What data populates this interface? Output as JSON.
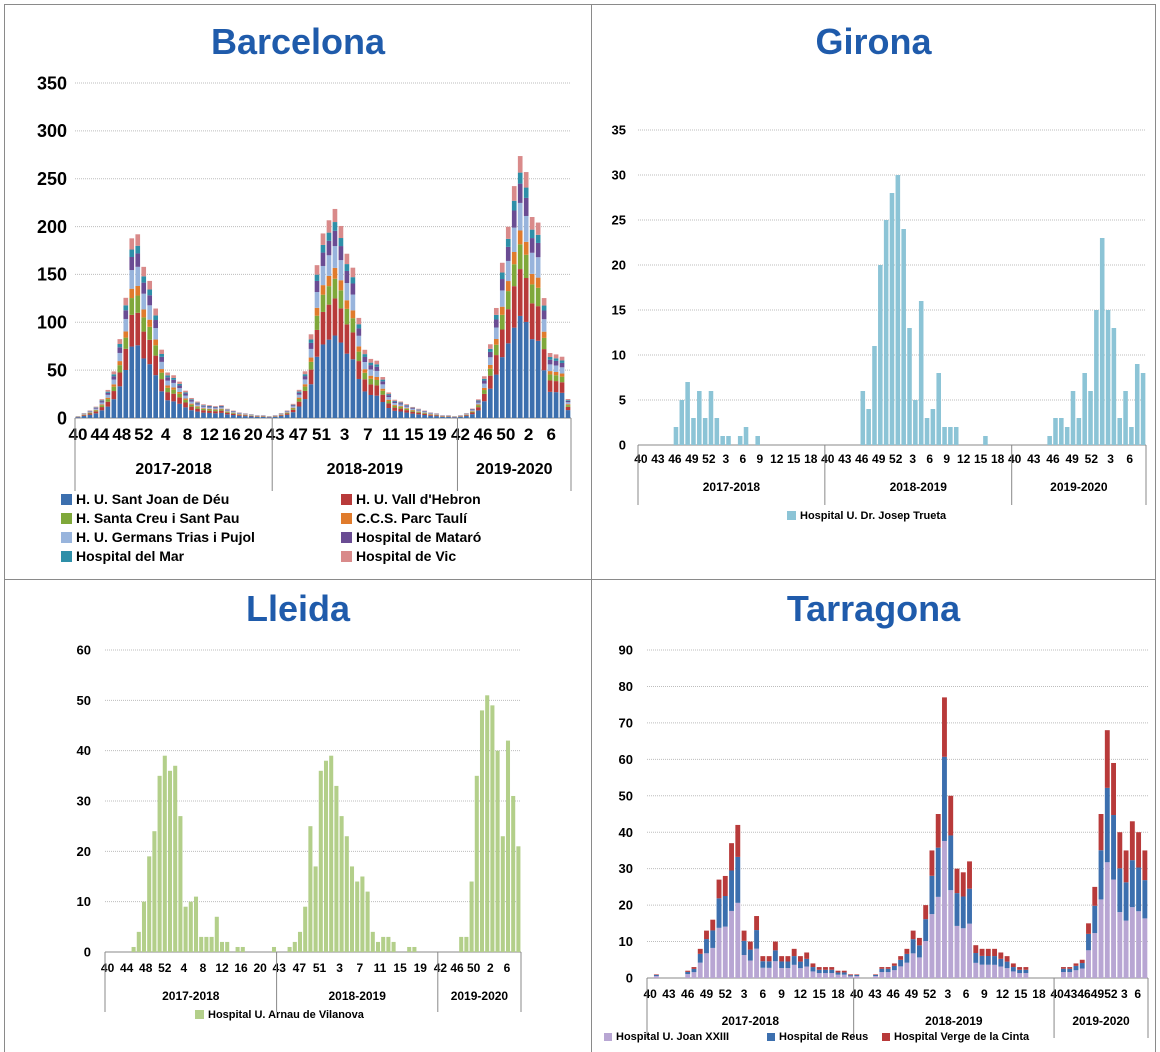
{
  "chart_data": [
    {
      "type": "bar",
      "stacked": true,
      "title": "Barcelona",
      "ylim": [
        0,
        350
      ],
      "yticks": [
        0,
        50,
        100,
        150,
        200,
        250,
        300,
        350
      ],
      "grid": true,
      "legend_position": "bottom",
      "seasons": [
        {
          "label": "2017-2018",
          "ticks": [
            "40",
            "44",
            "48",
            "52",
            "4",
            "8",
            "12",
            "16",
            "20"
          ]
        },
        {
          "label": "2018-2019",
          "ticks": [
            "43",
            "47",
            "51",
            "3",
            "7",
            "11",
            "15",
            "19"
          ]
        },
        {
          "label": "2019-2020",
          "ticks": [
            "42",
            "46",
            "50",
            "2",
            "6"
          ]
        }
      ],
      "series": [
        {
          "name": "H. U. Sant Joan de Déu",
          "color": "#3c6fae"
        },
        {
          "name": "H. U. Vall d'Hebron",
          "color": "#b83a3a"
        },
        {
          "name": "H. Santa Creu i Sant Pau",
          "color": "#7fa83a"
        },
        {
          "name": "C.C.S. Parc Taulí",
          "color": "#e07b2c"
        },
        {
          "name": "H. U. Germans Trias i Pujol",
          "color": "#98b4dc"
        },
        {
          "name": "Hospital de Mataró",
          "color": "#6a4c93"
        },
        {
          "name": "Hospital del Mar",
          "color": "#2e8fa8"
        },
        {
          "name": "Hospital de Vic",
          "color": "#d98a8a"
        }
      ],
      "season_totals": [
        [
          2,
          5,
          8,
          12,
          20,
          30,
          50,
          85,
          130,
          195,
          200,
          165,
          150,
          120,
          75,
          50,
          47,
          40,
          30,
          22,
          18,
          15,
          14,
          13,
          14,
          10,
          8,
          6,
          5,
          4,
          3,
          3,
          2
        ],
        [
          3,
          5,
          8,
          15,
          30,
          50,
          90,
          165,
          200,
          215,
          228,
          210,
          180,
          165,
          110,
          75,
          65,
          63,
          45,
          28,
          20,
          18,
          15,
          12,
          10,
          8,
          6,
          5,
          3,
          3,
          2
        ],
        [
          3,
          5,
          10,
          20,
          45,
          80,
          120,
          170,
          210,
          255,
          288,
          270,
          220,
          213,
          130,
          70,
          68,
          65,
          20
        ]
      ]
    },
    {
      "type": "bar",
      "title": "Girona",
      "ylim": [
        0,
        35
      ],
      "yticks": [
        0,
        5,
        10,
        15,
        20,
        25,
        30,
        35
      ],
      "grid": true,
      "legend_position": "bottom",
      "seasons": [
        {
          "label": "2017-2018",
          "ticks": [
            "40",
            "43",
            "46",
            "49",
            "52",
            "3",
            "6",
            "9",
            "12",
            "15",
            "18"
          ]
        },
        {
          "label": "2018-2019",
          "ticks": [
            "40",
            "43",
            "46",
            "49",
            "52",
            "3",
            "6",
            "9",
            "12",
            "15",
            "18"
          ]
        },
        {
          "label": "2019-2020",
          "ticks": [
            "40",
            "43",
            "46",
            "49",
            "52",
            "3",
            "6"
          ]
        }
      ],
      "series": [
        {
          "name": "Hospital U. Dr. Josep Trueta",
          "color": "#8cc4d6"
        }
      ],
      "season_values": [
        [
          0,
          0,
          0,
          0,
          0,
          0,
          2,
          5,
          7,
          3,
          6,
          3,
          6,
          3,
          1,
          1,
          0,
          1,
          2,
          0,
          1,
          0,
          0,
          0,
          0,
          0,
          0,
          0,
          0,
          0,
          0,
          0
        ],
        [
          0,
          0,
          0,
          0,
          0,
          0,
          6,
          4,
          11,
          20,
          25,
          28,
          30,
          24,
          13,
          5,
          16,
          3,
          4,
          8,
          2,
          2,
          2,
          0,
          0,
          0,
          0,
          1,
          0,
          0,
          0,
          0
        ],
        [
          0,
          0,
          0,
          0,
          0,
          0,
          1,
          3,
          3,
          2,
          6,
          3,
          8,
          6,
          15,
          23,
          15,
          13,
          3,
          6,
          2,
          9,
          8
        ]
      ]
    },
    {
      "type": "bar",
      "title": "Lleida",
      "ylim": [
        0,
        60
      ],
      "yticks": [
        0,
        10,
        20,
        30,
        40,
        50,
        60
      ],
      "grid": true,
      "legend_position": "bottom",
      "seasons": [
        {
          "label": "2017-2018",
          "ticks": [
            "40",
            "44",
            "48",
            "52",
            "4",
            "8",
            "12",
            "16",
            "20"
          ]
        },
        {
          "label": "2018-2019",
          "ticks": [
            "43",
            "47",
            "51",
            "3",
            "7",
            "11",
            "15",
            "19"
          ]
        },
        {
          "label": "2019-2020",
          "ticks": [
            "42",
            "46",
            "50",
            "2",
            "6"
          ]
        }
      ],
      "series": [
        {
          "name": "Hospital U. Arnau de Vilanova",
          "color": "#b3cf8a"
        }
      ],
      "season_values": [
        [
          0,
          0,
          0,
          0,
          0,
          1,
          4,
          10,
          19,
          24,
          35,
          39,
          36,
          37,
          27,
          9,
          10,
          11,
          3,
          3,
          3,
          7,
          2,
          2,
          0,
          1,
          1,
          0,
          0,
          0,
          0,
          0,
          1
        ],
        [
          0,
          0,
          1,
          2,
          4,
          9,
          25,
          17,
          36,
          38,
          39,
          33,
          27,
          23,
          17,
          14,
          15,
          12,
          4,
          2,
          3,
          3,
          2,
          0,
          0,
          1,
          1,
          0,
          0,
          0,
          0
        ],
        [
          0,
          0,
          0,
          0,
          3,
          3,
          14,
          35,
          48,
          51,
          49,
          40,
          23,
          42,
          31,
          21
        ]
      ]
    },
    {
      "type": "bar",
      "stacked": true,
      "title": "Tarragona",
      "ylim": [
        0,
        90
      ],
      "yticks": [
        0,
        10,
        20,
        30,
        40,
        50,
        60,
        70,
        80,
        90
      ],
      "grid": true,
      "legend_position": "bottom",
      "seasons": [
        {
          "label": "2017-2018",
          "ticks": [
            "40",
            "43",
            "46",
            "49",
            "52",
            "3",
            "6",
            "9",
            "12",
            "15",
            "18"
          ]
        },
        {
          "label": "2018-2019",
          "ticks": [
            "40",
            "43",
            "46",
            "49",
            "52",
            "3",
            "6",
            "9",
            "12",
            "15",
            "18"
          ]
        },
        {
          "label": "2019-2020",
          "ticks": [
            "40",
            "43",
            "46",
            "49",
            "52",
            "3",
            "6"
          ]
        }
      ],
      "series": [
        {
          "name": "Hospital U. Joan XXIII",
          "color": "#b8a6d3"
        },
        {
          "name": "Hospital de Reus",
          "color": "#3c6fae"
        },
        {
          "name": "Hospital Verge de la Cinta",
          "color": "#b83a3a"
        }
      ],
      "season_totals": [
        [
          0,
          1,
          0,
          0,
          0,
          0,
          2,
          3,
          8,
          13,
          16,
          27,
          28,
          37,
          42,
          13,
          10,
          17,
          6,
          6,
          10,
          6,
          6,
          8,
          6,
          7,
          4,
          3,
          3,
          3,
          2,
          2,
          1
        ],
        [
          1,
          0,
          0,
          1,
          3,
          3,
          4,
          6,
          8,
          13,
          11,
          20,
          35,
          45,
          77,
          50,
          30,
          29,
          32,
          9,
          8,
          8,
          8,
          7,
          6,
          4,
          3,
          3,
          0,
          0,
          0,
          0
        ],
        [
          0,
          3,
          3,
          4,
          5,
          15,
          25,
          45,
          68,
          59,
          40,
          35,
          43,
          40,
          35
        ]
      ]
    }
  ]
}
